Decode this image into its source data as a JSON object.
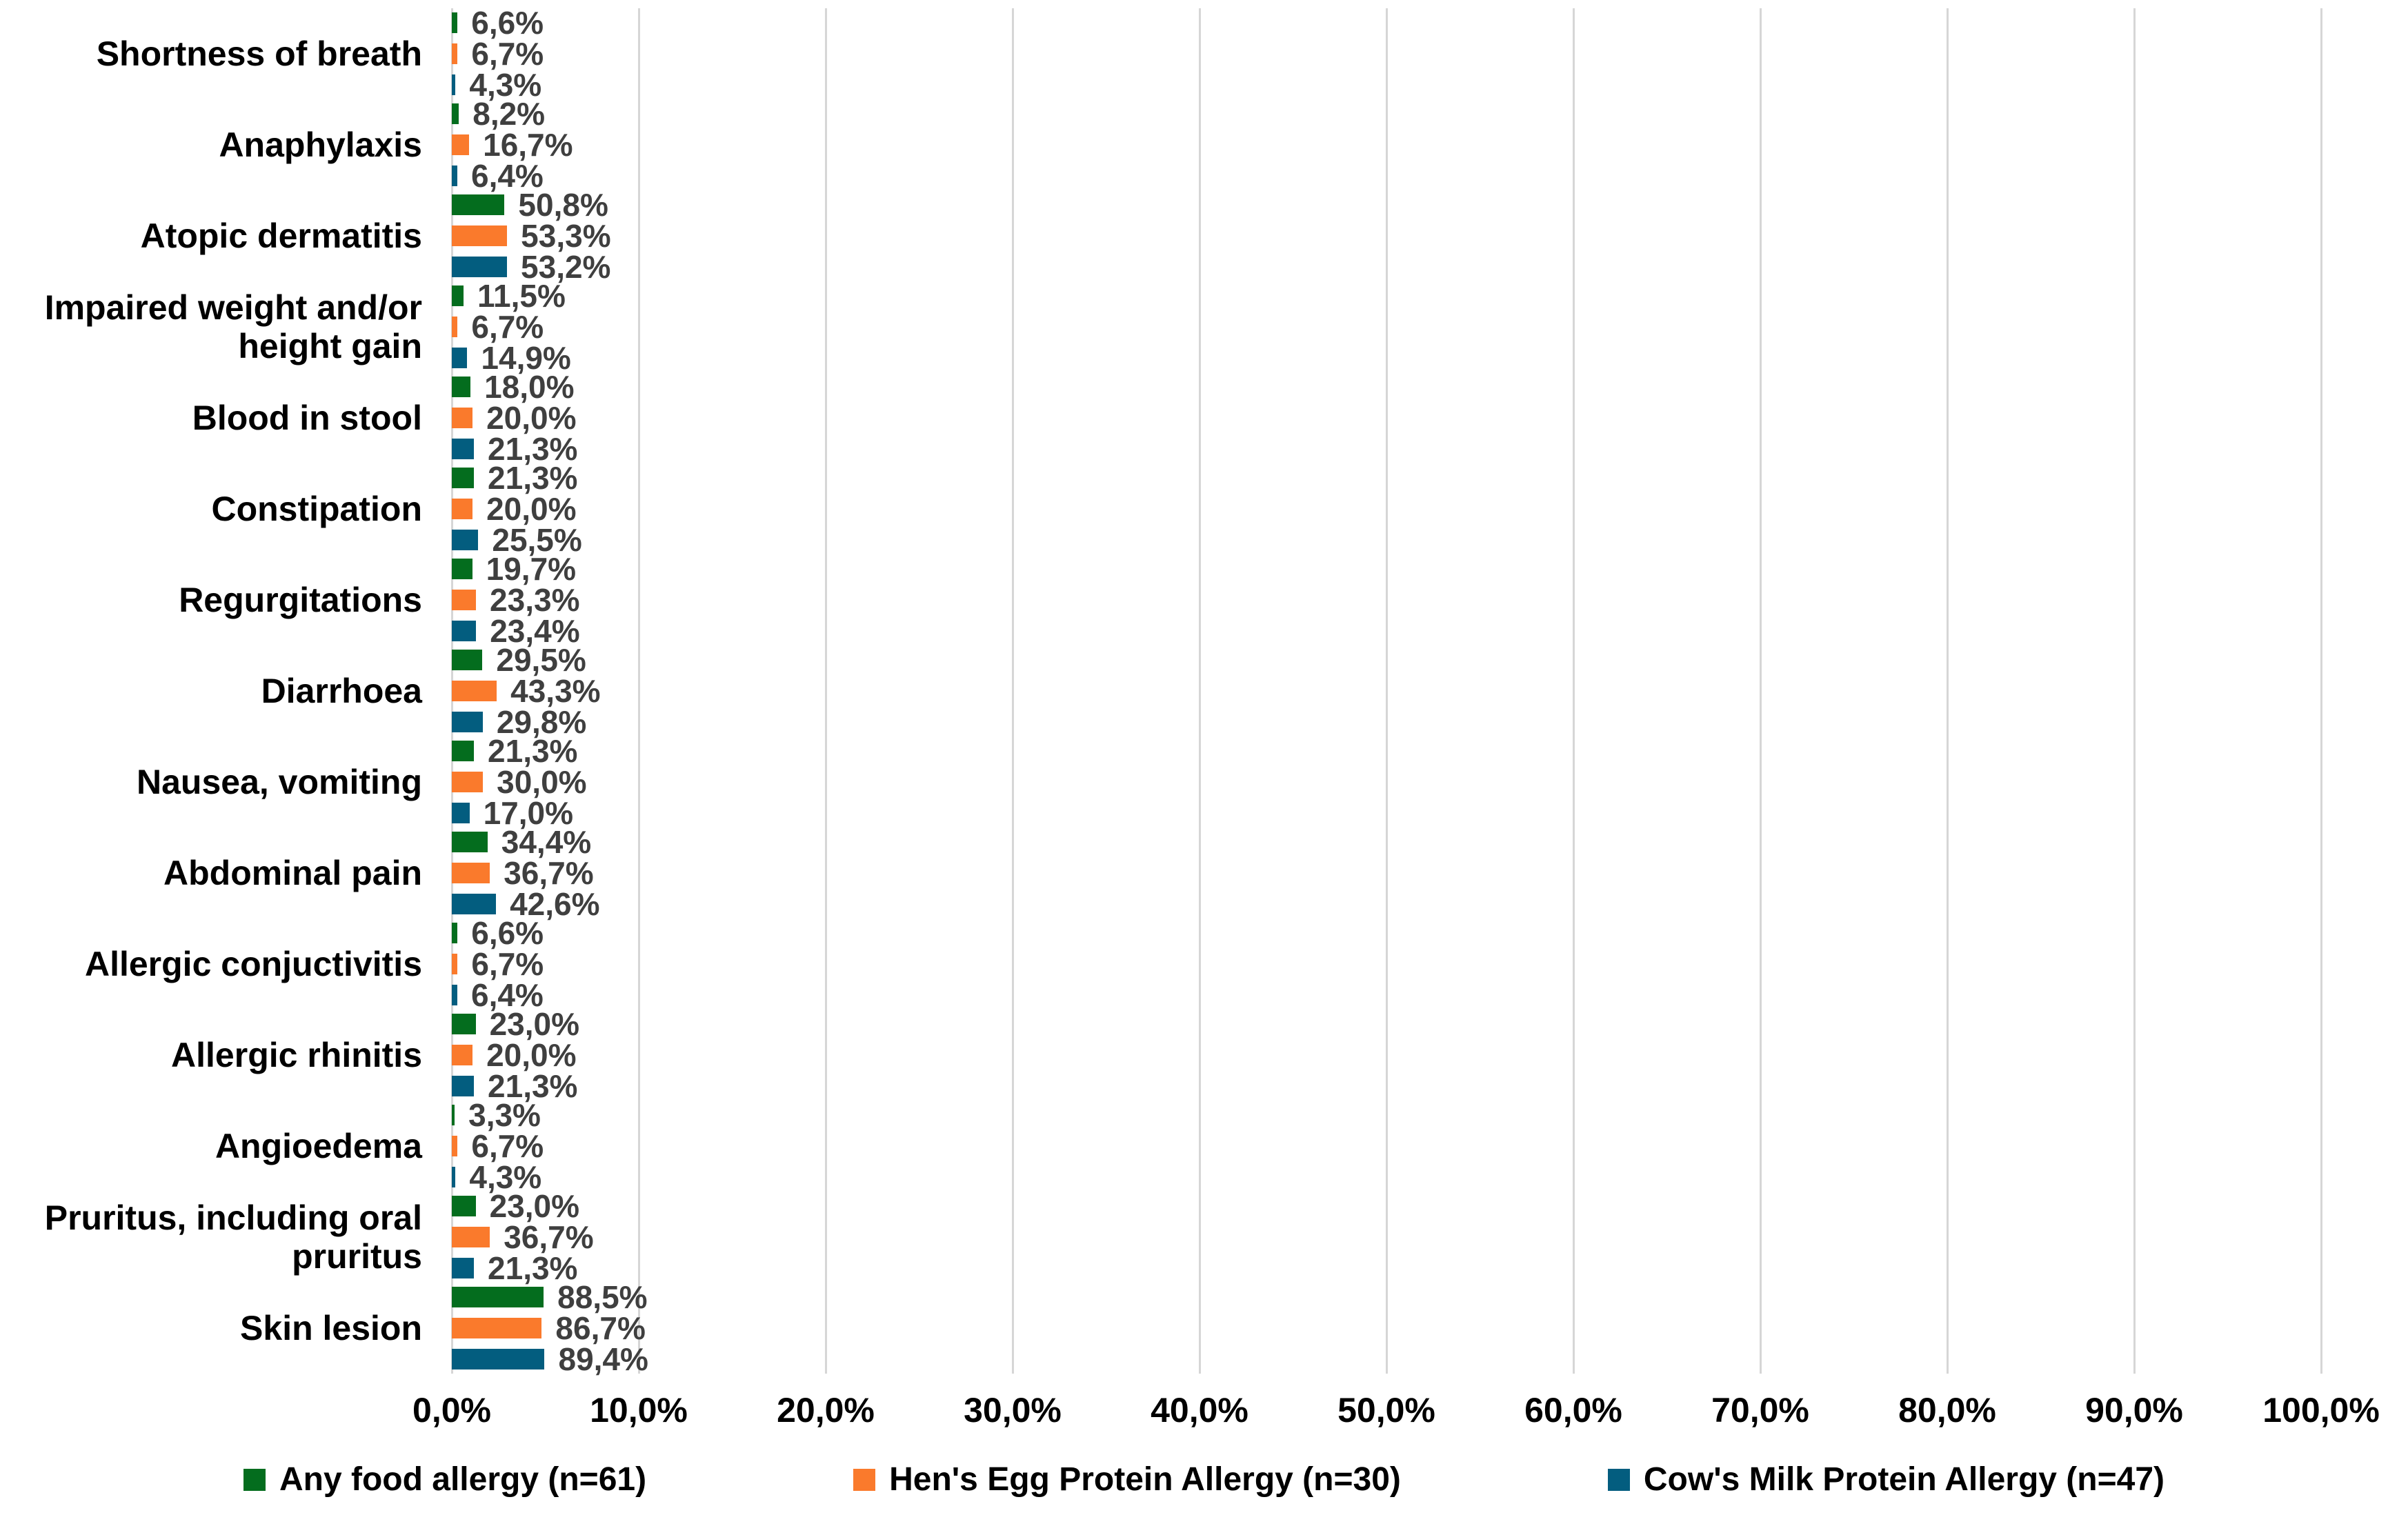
{
  "chart_data": {
    "type": "bar",
    "orientation": "horizontal",
    "title": "",
    "xlabel": "",
    "ylabel": "",
    "xlim": [
      0,
      100
    ],
    "grid": true,
    "legend_position": "bottom",
    "x_ticks": [
      "0,0%",
      "10,0%",
      "20,0%",
      "30,0%",
      "40,0%",
      "50,0%",
      "60,0%",
      "70,0%",
      "80,0%",
      "90,0%",
      "100,0%"
    ],
    "categories": [
      "Shortness of breath",
      "Anaphylaxis",
      "Atopic dermatitis",
      "Impaired weight and/or height gain",
      "Blood in stool",
      "Constipation",
      "Regurgitations",
      "Diarrhoea",
      "Nausea, vomiting",
      "Abdominal pain",
      "Allergic conjuctivitis",
      "Allergic rhinitis",
      "Angioedema",
      "Pruritus, including oral pruritus",
      "Skin lesion"
    ],
    "series": [
      {
        "name": "Any food allergy (n=61)",
        "color": "#046d1e",
        "values": [
          6.6,
          8.2,
          50.8,
          11.5,
          18.0,
          21.3,
          19.7,
          29.5,
          21.3,
          34.4,
          6.6,
          23.0,
          3.3,
          23.0,
          88.5
        ],
        "labels": [
          "6,6%",
          "8,2%",
          "50,8%",
          "11,5%",
          "18,0%",
          "21,3%",
          "19,7%",
          "29,5%",
          "21,3%",
          "34,4%",
          "6,6%",
          "23,0%",
          "3,3%",
          "23,0%",
          "88,5%"
        ]
      },
      {
        "name": "Hen's Egg Protein Allergy (n=30)",
        "color": "#fa7a2c",
        "values": [
          6.7,
          16.7,
          53.3,
          6.7,
          20.0,
          20.0,
          23.3,
          43.3,
          30.0,
          36.7,
          6.7,
          20.0,
          6.7,
          36.7,
          86.7
        ],
        "labels": [
          "6,7%",
          "16,7%",
          "53,3%",
          "6,7%",
          "20,0%",
          "20,0%",
          "23,3%",
          "43,3%",
          "30,0%",
          "36,7%",
          "6,7%",
          "20,0%",
          "6,7%",
          "36,7%",
          "86,7%"
        ]
      },
      {
        "name": "Cow's Milk Protein Allergy (n=47)",
        "color": "#035d7f",
        "values": [
          4.3,
          6.4,
          53.2,
          14.9,
          21.3,
          25.5,
          23.4,
          29.8,
          17.0,
          42.6,
          6.4,
          21.3,
          4.3,
          21.3,
          89.4
        ],
        "labels": [
          "4,3%",
          "6,4%",
          "53,2%",
          "14,9%",
          "21,3%",
          "25,5%",
          "23,4%",
          "29,8%",
          "17,0%",
          "42,6%",
          "6,4%",
          "21,3%",
          "4,3%",
          "21,3%",
          "89,4%"
        ]
      }
    ],
    "colors": {
      "gridline": "#d6d6d6",
      "value_label": "#3f3f3f",
      "text": "#000000",
      "background": "#ffffff"
    }
  }
}
